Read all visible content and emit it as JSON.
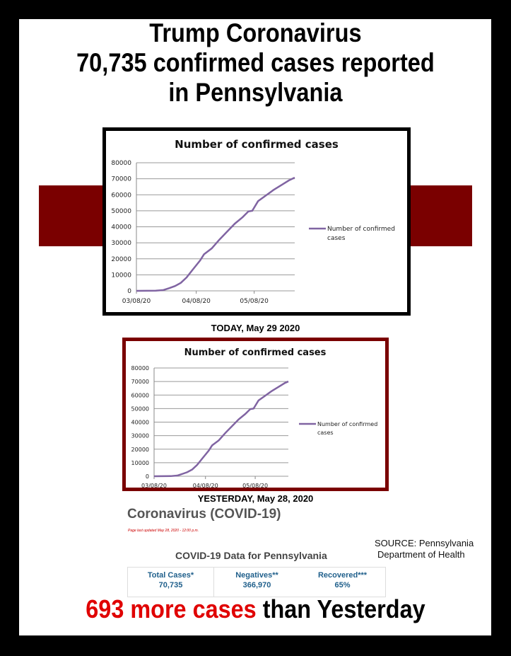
{
  "title_lines": [
    "Trump Coronavirus",
    "70,735 confirmed cases reported",
    "in Pennsylvania"
  ],
  "today_caption": "TODAY, May 29 2020",
  "yesterday_caption": "YESTERDAY, May 28, 2020",
  "colors": {
    "accent": "#7a0000",
    "line": "#8064a2",
    "highlight": "#e00000"
  },
  "chart_data": [
    {
      "type": "line",
      "title": "Number of confirmed cases",
      "ylim": [
        0,
        80000
      ],
      "yticks": [
        0,
        10000,
        20000,
        30000,
        40000,
        50000,
        60000,
        70000,
        80000
      ],
      "xticks": [
        "03/08/20",
        "04/08/20",
        "05/08/20"
      ],
      "grid": true,
      "legend": "right",
      "series": [
        {
          "name": "Number of confirmed cases",
          "x": [
            "03/08/20",
            "03/18/20",
            "03/22/20",
            "03/25/20",
            "03/28/20",
            "03/31/20",
            "04/03/20",
            "04/06/20",
            "04/10/20",
            "04/12/20",
            "04/16/20",
            "04/20/20",
            "04/24/20",
            "04/28/20",
            "05/02/20",
            "05/05/20",
            "05/07/20",
            "05/10/20",
            "05/14/20",
            "05/18/20",
            "05/22/20",
            "05/26/20",
            "05/29/20"
          ],
          "values": [
            0,
            100,
            500,
            1700,
            3000,
            5000,
            8400,
            13000,
            19000,
            22800,
            26500,
            32000,
            37000,
            42000,
            46000,
            49600,
            50000,
            56000,
            59500,
            63000,
            66000,
            69000,
            70735
          ]
        }
      ]
    },
    {
      "type": "line",
      "title": "Number of confirmed cases",
      "ylim": [
        0,
        80000
      ],
      "yticks": [
        0,
        10000,
        20000,
        30000,
        40000,
        50000,
        60000,
        70000,
        80000
      ],
      "xticks": [
        "03/08/20",
        "04/08/20",
        "05/08/20"
      ],
      "grid": true,
      "legend": "right",
      "series": [
        {
          "name": "Number of confirmed cases",
          "x": [
            "03/08/20",
            "03/18/20",
            "03/22/20",
            "03/25/20",
            "03/28/20",
            "03/31/20",
            "04/03/20",
            "04/06/20",
            "04/10/20",
            "04/12/20",
            "04/16/20",
            "04/20/20",
            "04/24/20",
            "04/28/20",
            "05/02/20",
            "05/05/20",
            "05/07/20",
            "05/10/20",
            "05/14/20",
            "05/18/20",
            "05/22/20",
            "05/26/20",
            "05/28/20"
          ],
          "values": [
            0,
            100,
            500,
            1700,
            3000,
            5000,
            8400,
            13000,
            19000,
            22800,
            26500,
            32000,
            37000,
            42000,
            46000,
            49600,
            50000,
            56000,
            59500,
            63000,
            66000,
            69000,
            70042
          ]
        }
      ]
    }
  ],
  "covid_heading": "Coronavirus (COVID-19)",
  "last_updated": "Page last updated May 28, 2020 - 12:00 p.m.",
  "source_lines": [
    "SOURCE: Pennsylvania",
    "Department of Health"
  ],
  "data_title": "COVID-19 Data for Pennsylvania",
  "stats": [
    {
      "label": "Total Cases*",
      "value": "70,735"
    },
    {
      "label": "Negatives**",
      "value": "366,970"
    },
    {
      "label": "Recovered***",
      "value": "65%"
    }
  ],
  "bottom": {
    "red": "693 more cases",
    "black": " than Yesterday"
  }
}
